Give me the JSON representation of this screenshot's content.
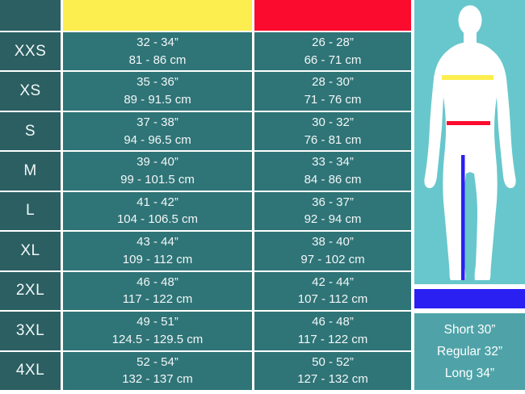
{
  "chart_data": {
    "type": "table",
    "title": "Apparel size chart with chest and waist measurements",
    "columns": [
      {
        "id": "size",
        "label": ""
      },
      {
        "id": "chest",
        "label": "",
        "header_color": "#fcee4f"
      },
      {
        "id": "waist",
        "label": "",
        "header_color": "#fb0c2e"
      }
    ],
    "rows": [
      {
        "size": "XXS",
        "chest_in": "32 - 34”",
        "chest_cm": "81 - 86 cm",
        "waist_in": "26 - 28”",
        "waist_cm": "66 - 71 cm"
      },
      {
        "size": "XS",
        "chest_in": "35 - 36”",
        "chest_cm": "89 - 91.5 cm",
        "waist_in": "28 - 30”",
        "waist_cm": "71 - 76 cm"
      },
      {
        "size": "S",
        "chest_in": "37 - 38”",
        "chest_cm": "94 - 96.5 cm",
        "waist_in": "30 - 32”",
        "waist_cm": "76 - 81 cm"
      },
      {
        "size": "M",
        "chest_in": "39 - 40”",
        "chest_cm": "99 - 101.5 cm",
        "waist_in": "33 - 34”",
        "waist_cm": "84 - 86 cm"
      },
      {
        "size": "L",
        "chest_in": "41 - 42”",
        "chest_cm": "104 - 106.5 cm",
        "waist_in": "36 - 37”",
        "waist_cm": "92 - 94 cm"
      },
      {
        "size": "XL",
        "chest_in": "43 - 44”",
        "chest_cm": "109 - 112 cm",
        "waist_in": "38 - 40”",
        "waist_cm": "97 - 102 cm"
      },
      {
        "size": "2XL",
        "chest_in": "46 - 48”",
        "chest_cm": "117 - 122 cm",
        "waist_in": "42 - 44”",
        "waist_cm": "107 - 112 cm"
      },
      {
        "size": "3XL",
        "chest_in": "49 - 51”",
        "chest_cm": "124.5 - 129.5 cm",
        "waist_in": "46 - 48”",
        "waist_cm": "117 - 122 cm"
      },
      {
        "size": "4XL",
        "chest_in": "52 - 54”",
        "chest_cm": "132 - 137 cm",
        "waist_in": "50 - 52”",
        "waist_cm": "127 - 132 cm"
      }
    ],
    "inseam": [
      "Short 30”",
      "Regular 32”",
      "Long 34”"
    ]
  },
  "figure": {
    "silhouette": "male-body-front",
    "silhouette_color": "#ffffff",
    "background_color": "#67c7cc",
    "chest_line_color": "#fcee4f",
    "waist_line_color": "#fb0c2e",
    "inseam_line_color": "#2b20f2"
  },
  "colors": {
    "table_dark_teal": "#2b5f62",
    "table_cell_teal": "#2f7477",
    "chest_header_yellow": "#fcee4f",
    "waist_header_red": "#fb0c2e",
    "inseam_header_blue": "#2b20f2",
    "inseam_box_teal": "#4fa3a8",
    "text_white": "#f2f7f7"
  }
}
